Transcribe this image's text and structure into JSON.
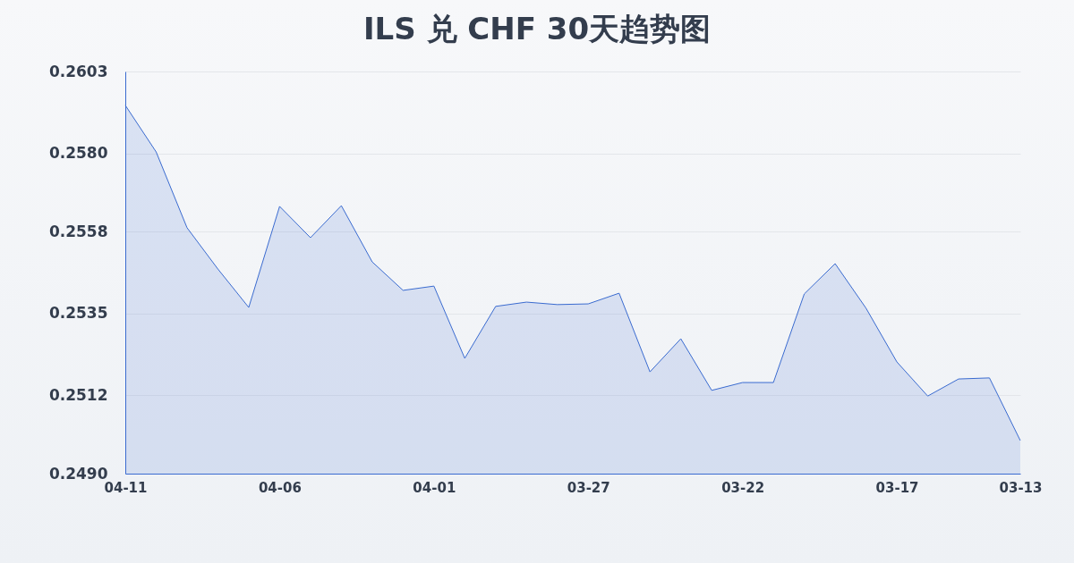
{
  "chart_data": {
    "type": "area",
    "title": "ILS 兑 CHF 30天趋势图",
    "categories": [
      "04-11",
      null,
      null,
      null,
      null,
      "04-06",
      null,
      null,
      null,
      null,
      "04-01",
      null,
      null,
      null,
      null,
      "03-27",
      null,
      null,
      null,
      null,
      "03-22",
      null,
      null,
      null,
      null,
      "03-17",
      null,
      null,
      null,
      "03-13"
    ],
    "series": [
      {
        "color": "#3a6bd0",
        "values": [
          0.25935,
          0.25804,
          0.25591,
          0.25475,
          0.25367,
          0.25651,
          0.25563,
          0.25653,
          0.25495,
          0.25415,
          0.25427,
          0.25224,
          0.2537,
          0.25382,
          0.25375,
          0.25377,
          0.25407,
          0.25186,
          0.25279,
          0.25134,
          0.25156,
          0.25156,
          0.25405,
          0.2549,
          0.25365,
          0.25214,
          0.25118,
          0.25166,
          0.25169,
          0.24993
        ]
      }
    ],
    "ylim": [
      0.249,
      0.2603
    ],
    "yticks": [
      {
        "value": 0.249,
        "label": "0.2490"
      },
      0.2512,
      0.2535,
      0.2558,
      {
        "value": 0.258,
        "label": "0.2580"
      },
      0.2603
    ],
    "grid": "y"
  }
}
